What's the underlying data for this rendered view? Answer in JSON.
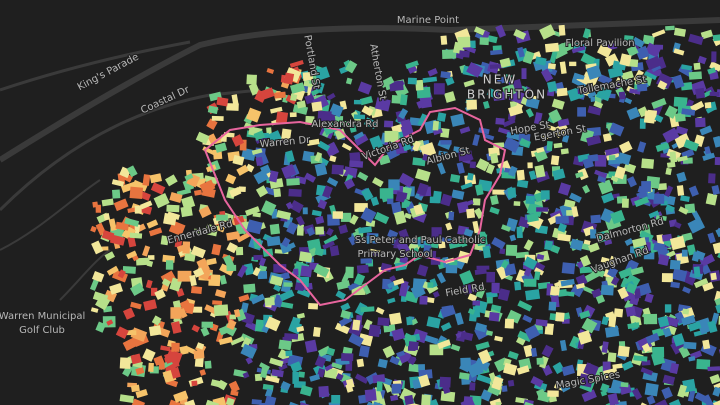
{
  "labels": [
    {
      "text": "Marine Point"
    },
    {
      "text": "Floral Pavilion"
    },
    {
      "text": "King's Parade"
    },
    {
      "text": "Coastal Dr"
    },
    {
      "text": "Portland St"
    },
    {
      "text": "Atherton St"
    },
    {
      "text": "NEW"
    },
    {
      "text": "BRIGHTON"
    },
    {
      "text": "Tollemache St"
    },
    {
      "text": "Alexandra Rd"
    },
    {
      "text": "Warren Dr"
    },
    {
      "text": "Victoria Rd"
    },
    {
      "text": "Albion St"
    },
    {
      "text": "Hope St"
    },
    {
      "text": "Egerton St"
    },
    {
      "text": "Ennerdale Rd"
    },
    {
      "text": "Ss Peter and Paul Catholic"
    },
    {
      "text": "Primary School"
    },
    {
      "text": "Field Rd"
    },
    {
      "text": "Dalmorton Rd"
    },
    {
      "text": "Vaughan Rd"
    },
    {
      "text": "Warren Municipal"
    },
    {
      "text": "Golf Club"
    },
    {
      "text": "Magic Spices"
    }
  ]
}
